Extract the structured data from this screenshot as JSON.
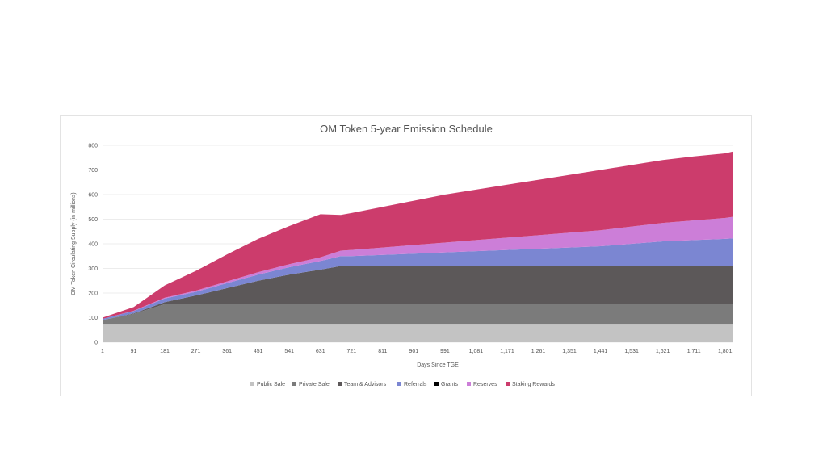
{
  "chart_data": {
    "type": "area",
    "stacked": true,
    "title": "OM Token 5-year Emission Schedule",
    "xlabel": "Days Since TGE",
    "ylabel": "OM Token Circulating Supply (in millions)",
    "xlim": [
      1,
      1825
    ],
    "ylim": [
      0,
      800
    ],
    "grid": true,
    "legend_position": "bottom",
    "x_ticks": [
      "1",
      "91",
      "181",
      "271",
      "361",
      "451",
      "541",
      "631",
      "721",
      "811",
      "901",
      "991",
      "1,081",
      "1,171",
      "1,261",
      "1,351",
      "1,441",
      "1,531",
      "1,621",
      "1,711",
      "1,801"
    ],
    "y_ticks": [
      "0",
      "100",
      "200",
      "300",
      "400",
      "500",
      "600",
      "700",
      "800"
    ],
    "x": [
      1,
      91,
      181,
      271,
      361,
      451,
      541,
      631,
      690,
      721,
      811,
      901,
      991,
      1081,
      1171,
      1261,
      1351,
      1441,
      1531,
      1621,
      1711,
      1801,
      1825
    ],
    "series": [
      {
        "name": "Public Sale",
        "color": "#c3c3c3",
        "values": [
          75,
          75,
          75,
          75,
          75,
          75,
          75,
          75,
          75,
          75,
          75,
          75,
          75,
          75,
          75,
          75,
          75,
          75,
          75,
          75,
          75,
          75,
          75
        ]
      },
      {
        "name": "Private Sale",
        "color": "#7b7b7b",
        "values": [
          15,
          40,
          80,
          80,
          80,
          80,
          80,
          80,
          80,
          80,
          80,
          80,
          80,
          80,
          80,
          80,
          80,
          80,
          80,
          80,
          80,
          80,
          80
        ]
      },
      {
        "name": "Team & Advisors",
        "color": "#5c5859",
        "values": [
          0,
          2,
          8,
          35,
          65,
          95,
          120,
          140,
          155,
          155,
          155,
          155,
          155,
          155,
          155,
          155,
          155,
          155,
          155,
          155,
          155,
          155,
          155
        ]
      },
      {
        "name": "Referrals",
        "color": "#7b86d2",
        "values": [
          5,
          10,
          15,
          15,
          20,
          25,
          30,
          35,
          40,
          40,
          45,
          50,
          55,
          60,
          65,
          70,
          75,
          80,
          90,
          100,
          105,
          110,
          112
        ]
      },
      {
        "name": "Grants",
        "color": "#000000",
        "values": [
          0,
          0,
          0,
          0,
          0,
          0,
          0,
          0,
          0,
          0,
          0,
          0,
          0,
          0,
          0,
          0,
          0,
          0,
          0,
          0,
          0,
          0,
          0
        ]
      },
      {
        "name": "Reserves",
        "color": "#cc7ed8",
        "values": [
          0,
          1,
          3,
          5,
          7,
          10,
          12,
          15,
          22,
          25,
          30,
          35,
          40,
          45,
          50,
          55,
          60,
          65,
          70,
          75,
          80,
          85,
          88
        ]
      },
      {
        "name": "Staking Rewards",
        "color": "#cc3c6c",
        "values": [
          5,
          15,
          50,
          80,
          110,
          135,
          155,
          175,
          145,
          150,
          165,
          180,
          195,
          205,
          215,
          225,
          235,
          245,
          250,
          255,
          260,
          262,
          265
        ]
      }
    ]
  }
}
